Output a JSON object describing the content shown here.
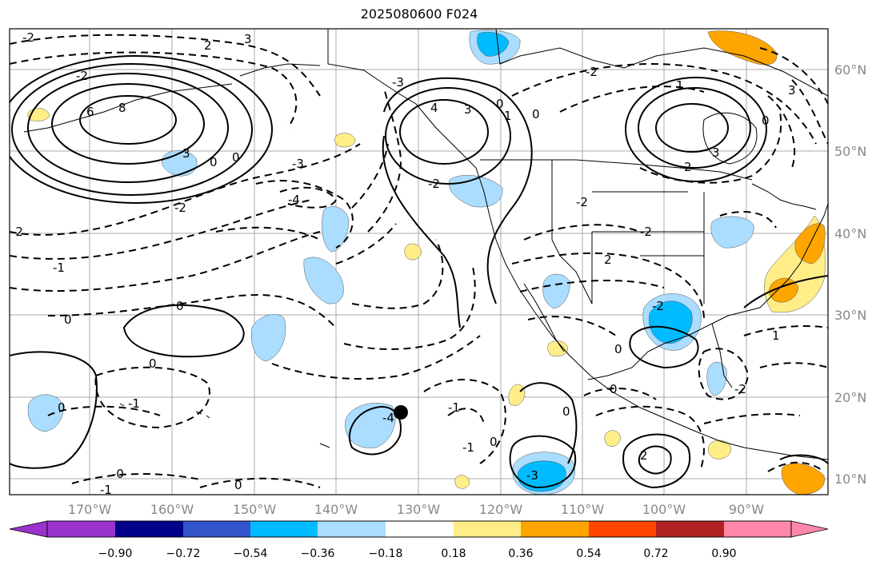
{
  "title": "2025080600 F024",
  "map": {
    "lon_ticks": [
      "170°W",
      "160°W",
      "150°W",
      "140°W",
      "130°W",
      "120°W",
      "110°W",
      "100°W",
      "90°W"
    ],
    "lat_ticks": [
      "10°N",
      "20°N",
      "30°N",
      "40°N",
      "50°N",
      "60°N"
    ],
    "marker": {
      "lon": "131°W",
      "lat": "18°N"
    },
    "contour_labels": [
      "-2",
      "-2",
      "3",
      "2",
      "6",
      "8",
      "3",
      "0",
      "0",
      "-3",
      "-4",
      "-2",
      "-2",
      "-1",
      "0",
      "0",
      "0",
      "-1",
      "0",
      "4",
      "3",
      "0",
      "0",
      "1",
      "-3",
      "-2",
      "-2",
      "-2",
      "2",
      "-2",
      "1",
      "3",
      "3",
      "0",
      "2",
      "-2",
      "0",
      "0",
      "0",
      "1",
      "-2",
      "2",
      "0",
      "-1",
      "-1",
      "-1",
      "-0",
      "0",
      "-4",
      "-3"
    ],
    "colors": {
      "positive_contour": "#000000",
      "negative_contour": "#000000",
      "coast": "#000000",
      "grid": "#aaaaaa"
    }
  },
  "colorbar": {
    "colors": [
      "#9933cc",
      "#000088",
      "#3355cc",
      "#00bbff",
      "#aaddff",
      "#ffffff",
      "#ffee88",
      "#ffa500",
      "#ff4500",
      "#b22222",
      "#ff88aa"
    ],
    "labels": [
      "−0.90",
      "−0.72",
      "−0.54",
      "−0.36",
      "−0.18",
      "0.18",
      "0.36",
      "0.54",
      "0.72",
      "0.90"
    ]
  }
}
